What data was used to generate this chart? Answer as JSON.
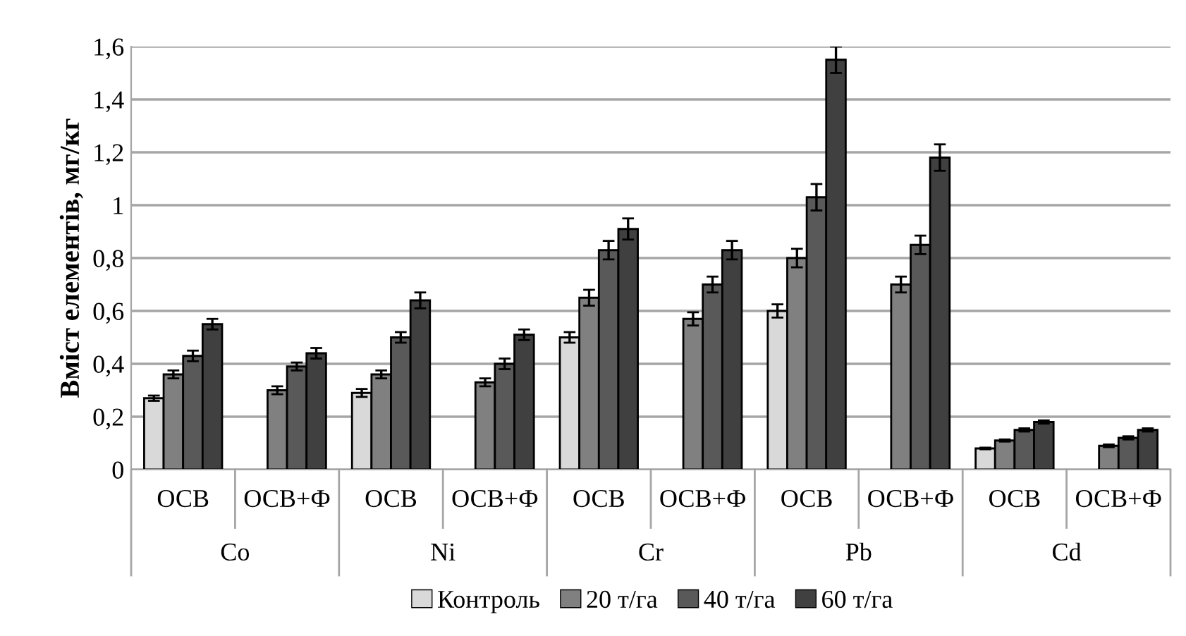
{
  "chart_data": {
    "type": "bar",
    "ylabel": "Вміст елементів, мг/кг",
    "categories": [
      "ОСВ",
      "ОСВ+Ф",
      "ОСВ",
      "ОСВ+Ф",
      "ОСВ",
      "ОСВ+Ф",
      "ОСВ",
      "ОСВ+Ф",
      "ОСВ",
      "ОСВ+Ф"
    ],
    "annotations": [
      "Co",
      "Ni",
      "Cr",
      "Pb",
      "Cd"
    ],
    "series": [
      {
        "name": "Контроль",
        "color": "#d9d9d9",
        "values": [
          0.27,
          null,
          0.29,
          null,
          0.5,
          null,
          0.6,
          null,
          0.08,
          null
        ],
        "errors": [
          0.01,
          null,
          0.015,
          null,
          0.02,
          null,
          0.025,
          null,
          0.003,
          null
        ]
      },
      {
        "name": "20 т/га",
        "color": "#808080",
        "values": [
          0.36,
          0.3,
          0.36,
          0.33,
          0.65,
          0.57,
          0.8,
          0.7,
          0.11,
          0.09
        ],
        "errors": [
          0.015,
          0.015,
          0.015,
          0.015,
          0.03,
          0.025,
          0.035,
          0.03,
          0.004,
          0.005
        ]
      },
      {
        "name": "40 т/га",
        "color": "#595959",
        "values": [
          0.43,
          0.39,
          0.5,
          0.4,
          0.83,
          0.7,
          1.03,
          0.85,
          0.15,
          0.12
        ],
        "errors": [
          0.02,
          0.015,
          0.02,
          0.02,
          0.035,
          0.03,
          0.05,
          0.035,
          0.006,
          0.006
        ]
      },
      {
        "name": "60 т/га",
        "color": "#404040",
        "values": [
          0.55,
          0.44,
          0.64,
          0.51,
          0.91,
          0.83,
          1.55,
          1.18,
          0.18,
          0.15
        ],
        "errors": [
          0.02,
          0.02,
          0.03,
          0.02,
          0.04,
          0.035,
          0.05,
          0.05,
          0.006,
          0.006
        ]
      }
    ],
    "ylim": [
      0,
      1.6
    ],
    "yticks": [
      0,
      {
        "value": 0.2,
        "label": "0,2"
      },
      {
        "value": 0.4,
        "label": "0,4"
      },
      {
        "value": 0.6,
        "label": "0,6"
      },
      {
        "value": 0.8,
        "label": "0,8"
      },
      1,
      {
        "value": 1.2,
        "label": "1,2"
      },
      {
        "value": 1.4,
        "label": "1,4"
      },
      {
        "value": 1.6,
        "label": "1,6"
      }
    ],
    "grid": "y",
    "legend": "bottom"
  }
}
